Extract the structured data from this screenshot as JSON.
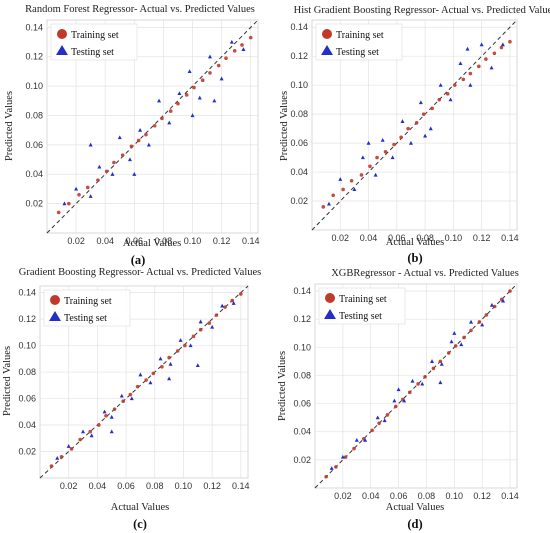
{
  "figure": {
    "colors": {
      "training": "#c0392b",
      "testing": "#2230c8",
      "diagonal": "#333333",
      "grid": "#e3e3e3"
    }
  },
  "chart_data": [
    {
      "type": "scatter",
      "title": "Random Forest Regressor- Actual vs. Predicted Values",
      "panel_label": "(a)",
      "xlabel": "Actual Values",
      "ylabel": "Predicted Values",
      "xlim": [
        0.0,
        0.145
      ],
      "ylim": [
        0.0,
        0.145
      ],
      "xticks": [
        "0.02",
        "0.04",
        "0.06",
        "0.08",
        "0.10",
        "0.12",
        "0.14"
      ],
      "yticks": [
        "0.02",
        "0.04",
        "0.06",
        "0.08",
        "0.10",
        "0.12",
        "0.14"
      ],
      "legend": [
        "Training set",
        "Testing set"
      ],
      "legend_position": "top-left",
      "grid": true,
      "diagonal_reference": true,
      "series": [
        {
          "name": "Training set",
          "x": [
            0.008,
            0.015,
            0.022,
            0.028,
            0.035,
            0.041,
            0.046,
            0.052,
            0.058,
            0.063,
            0.068,
            0.074,
            0.079,
            0.085,
            0.09,
            0.096,
            0.101,
            0.107,
            0.112,
            0.118,
            0.123,
            0.129,
            0.134,
            0.14
          ],
          "y": [
            0.014,
            0.02,
            0.026,
            0.031,
            0.036,
            0.042,
            0.048,
            0.053,
            0.059,
            0.063,
            0.067,
            0.073,
            0.078,
            0.083,
            0.088,
            0.094,
            0.099,
            0.104,
            0.109,
            0.114,
            0.119,
            0.124,
            0.128,
            0.133
          ]
        },
        {
          "name": "Testing set",
          "x": [
            0.012,
            0.02,
            0.03,
            0.036,
            0.045,
            0.05,
            0.057,
            0.064,
            0.07,
            0.077,
            0.084,
            0.091,
            0.098,
            0.105,
            0.112,
            0.12,
            0.127,
            0.135,
            0.03,
            0.06,
            0.1,
            0.115
          ],
          "y": [
            0.02,
            0.03,
            0.025,
            0.045,
            0.04,
            0.065,
            0.05,
            0.07,
            0.06,
            0.09,
            0.075,
            0.095,
            0.11,
            0.092,
            0.12,
            0.105,
            0.13,
            0.125,
            0.06,
            0.04,
            0.08,
            0.09
          ]
        }
      ]
    },
    {
      "type": "scatter",
      "title": "Hist Gradient Boosting Regressor- Actual vs. Predicted Values",
      "panel_label": "(b)",
      "xlabel": "Actual Values",
      "ylabel": "Predicted Values",
      "xlim": [
        0.0,
        0.145
      ],
      "ylim": [
        0.0,
        0.145
      ],
      "xticks": [
        "0.02",
        "0.04",
        "0.06",
        "0.08",
        "0.10",
        "0.12",
        "0.14"
      ],
      "yticks": [
        "0.02",
        "0.04",
        "0.06",
        "0.08",
        "0.10",
        "0.12",
        "0.14"
      ],
      "legend": [
        "Training set",
        "Testing set"
      ],
      "legend_position": "top-left",
      "grid": true,
      "diagonal_reference": true,
      "series": [
        {
          "name": "Training set",
          "x": [
            0.008,
            0.015,
            0.022,
            0.028,
            0.035,
            0.041,
            0.046,
            0.052,
            0.058,
            0.063,
            0.068,
            0.074,
            0.079,
            0.085,
            0.09,
            0.096,
            0.101,
            0.107,
            0.112,
            0.118,
            0.123,
            0.129,
            0.134,
            0.14
          ],
          "y": [
            0.016,
            0.024,
            0.028,
            0.034,
            0.038,
            0.044,
            0.05,
            0.054,
            0.059,
            0.064,
            0.07,
            0.074,
            0.08,
            0.084,
            0.09,
            0.094,
            0.1,
            0.104,
            0.108,
            0.113,
            0.118,
            0.122,
            0.126,
            0.13
          ]
        },
        {
          "name": "Testing set",
          "x": [
            0.012,
            0.02,
            0.03,
            0.036,
            0.045,
            0.05,
            0.057,
            0.064,
            0.07,
            0.077,
            0.084,
            0.091,
            0.098,
            0.105,
            0.112,
            0.12,
            0.127,
            0.135,
            0.04,
            0.08,
            0.11
          ],
          "y": [
            0.018,
            0.035,
            0.028,
            0.05,
            0.038,
            0.062,
            0.05,
            0.075,
            0.06,
            0.088,
            0.07,
            0.1,
            0.09,
            0.115,
            0.1,
            0.128,
            0.112,
            0.128,
            0.06,
            0.065,
            0.125
          ]
        }
      ]
    },
    {
      "type": "scatter",
      "title": "Gradient Boosting Regressor- Actual vs. Predicted Values",
      "panel_label": "(c)",
      "xlabel": "Actual Values",
      "ylabel": "Predicted Values",
      "xlim": [
        0.0,
        0.145
      ],
      "ylim": [
        0.0,
        0.145
      ],
      "xticks": [
        "0.02",
        "0.04",
        "0.06",
        "0.08",
        "0.10",
        "0.12",
        "0.14"
      ],
      "yticks": [
        "0.02",
        "0.04",
        "0.06",
        "0.08",
        "0.10",
        "0.12",
        "0.14"
      ],
      "legend": [
        "Training set",
        "Testing set"
      ],
      "legend_position": "top-left",
      "grid": true,
      "diagonal_reference": true,
      "series": [
        {
          "name": "Training set",
          "x": [
            0.008,
            0.015,
            0.022,
            0.028,
            0.035,
            0.041,
            0.046,
            0.052,
            0.058,
            0.063,
            0.068,
            0.074,
            0.079,
            0.085,
            0.09,
            0.096,
            0.101,
            0.107,
            0.112,
            0.118,
            0.123,
            0.129,
            0.134,
            0.14
          ],
          "y": [
            0.009,
            0.016,
            0.022,
            0.029,
            0.035,
            0.04,
            0.047,
            0.052,
            0.058,
            0.063,
            0.069,
            0.074,
            0.079,
            0.084,
            0.091,
            0.096,
            0.1,
            0.107,
            0.112,
            0.117,
            0.123,
            0.129,
            0.134,
            0.139
          ]
        },
        {
          "name": "Testing set",
          "x": [
            0.012,
            0.02,
            0.03,
            0.036,
            0.045,
            0.05,
            0.057,
            0.064,
            0.07,
            0.077,
            0.084,
            0.091,
            0.098,
            0.105,
            0.112,
            0.12,
            0.127,
            0.135,
            0.05,
            0.09,
            0.11
          ],
          "y": [
            0.015,
            0.024,
            0.035,
            0.032,
            0.05,
            0.046,
            0.062,
            0.06,
            0.078,
            0.072,
            0.09,
            0.086,
            0.104,
            0.1,
            0.118,
            0.114,
            0.13,
            0.132,
            0.035,
            0.075,
            0.085
          ]
        }
      ]
    },
    {
      "type": "scatter",
      "title": "XGBRegressor - Actual vs. Predicted Values",
      "panel_label": "(d)",
      "xlabel": "Actual Values",
      "ylabel": "Predicted Values",
      "xlim": [
        0.0,
        0.145
      ],
      "ylim": [
        0.0,
        0.145
      ],
      "xticks": [
        "0.02",
        "0.04",
        "0.06",
        "0.08",
        "0.10",
        "0.12",
        "0.14"
      ],
      "yticks": [
        "0.02",
        "0.04",
        "0.06",
        "0.08",
        "0.10",
        "0.12",
        "0.14"
      ],
      "legend": [
        "Training set",
        "Testing set"
      ],
      "legend_position": "top-left",
      "grid": true,
      "diagonal_reference": true,
      "series": [
        {
          "name": "Training set",
          "x": [
            0.008,
            0.015,
            0.022,
            0.028,
            0.035,
            0.041,
            0.046,
            0.052,
            0.058,
            0.063,
            0.068,
            0.074,
            0.079,
            0.085,
            0.09,
            0.096,
            0.101,
            0.107,
            0.112,
            0.118,
            0.123,
            0.129,
            0.134,
            0.14
          ],
          "y": [
            0.008,
            0.015,
            0.022,
            0.028,
            0.035,
            0.041,
            0.046,
            0.052,
            0.058,
            0.063,
            0.068,
            0.074,
            0.079,
            0.085,
            0.09,
            0.096,
            0.101,
            0.107,
            0.112,
            0.118,
            0.123,
            0.129,
            0.134,
            0.14
          ]
        },
        {
          "name": "Testing set",
          "x": [
            0.012,
            0.02,
            0.03,
            0.036,
            0.045,
            0.05,
            0.057,
            0.064,
            0.07,
            0.077,
            0.084,
            0.091,
            0.098,
            0.105,
            0.112,
            0.12,
            0.127,
            0.135,
            0.06,
            0.09,
            0.1
          ],
          "y": [
            0.014,
            0.022,
            0.034,
            0.034,
            0.05,
            0.048,
            0.062,
            0.062,
            0.076,
            0.074,
            0.09,
            0.088,
            0.104,
            0.102,
            0.118,
            0.116,
            0.13,
            0.133,
            0.07,
            0.075,
            0.11
          ]
        }
      ]
    }
  ]
}
